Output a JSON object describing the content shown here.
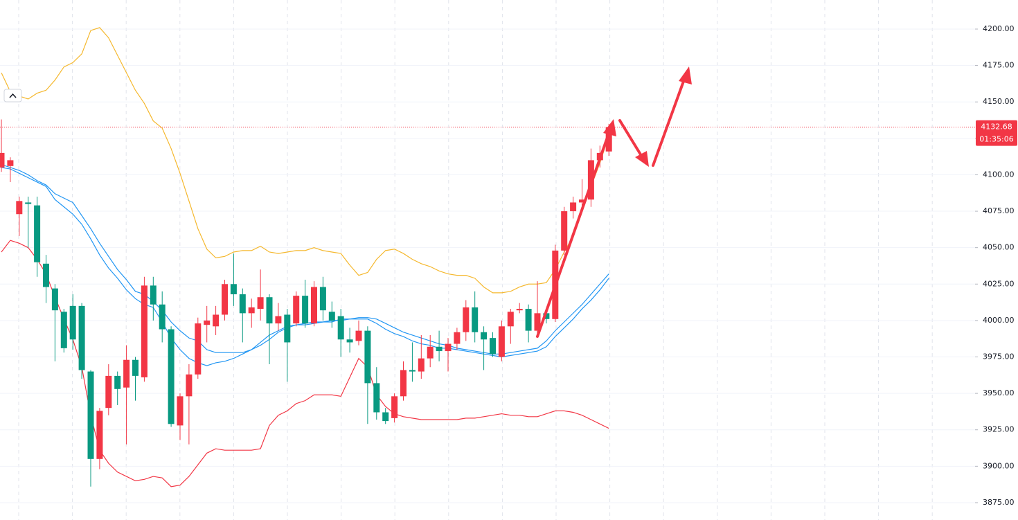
{
  "chart_data": {
    "type": "candlestick",
    "up_color": "#f23645",
    "down_color": "#089981",
    "ylim": [
      3863.1,
      4219.95
    ],
    "yticks": [
      {
        "value": 4200,
        "label": "4200.00"
      },
      {
        "value": 4175,
        "label": "4175.00"
      },
      {
        "value": 4150,
        "label": "4150.00"
      },
      {
        "value": 4125,
        "label": "4125.00"
      },
      {
        "value": 4100,
        "label": "4100.00"
      },
      {
        "value": 4075,
        "label": "4075.00"
      },
      {
        "value": 4050,
        "label": "4050.00"
      },
      {
        "value": 4025,
        "label": "4025.00"
      },
      {
        "value": 4000,
        "label": "4000.00"
      },
      {
        "value": 3975,
        "label": "3975.00"
      },
      {
        "value": 3950,
        "label": "3950.00"
      },
      {
        "value": 3925,
        "label": "3925.00"
      },
      {
        "value": 3900,
        "label": "3900.00"
      },
      {
        "value": 3875,
        "label": "3875.00"
      }
    ],
    "grid": true,
    "candles": {
      "open": [
        4105,
        4106,
        4073,
        4081,
        4079,
        4039,
        4022,
        4006,
        4010,
        4010,
        3965,
        3905,
        3940,
        3962,
        3954,
        3973,
        3961,
        4024,
        4011,
        3994,
        3928,
        3948,
        3963,
        3997,
        3996,
        4004,
        4025,
        4018,
        4005,
        4008,
        4016,
        3998,
        4004,
        3998,
        4017,
        3998,
        4023,
        4006,
        4003,
        3987,
        3986,
        3993,
        3957,
        3937,
        3933,
        3948,
        3966,
        3965,
        3974,
        3982,
        3979,
        3984,
        3992,
        4009,
        3992,
        3988,
        3975,
        3996,
        4007,
        4008,
        3993,
        4005,
        4001,
        4048,
        4075,
        4081,
        4083,
        4110,
        4116
      ],
      "high": [
        4138,
        4112,
        4085,
        4085,
        4085,
        4045,
        4025,
        4008,
        4018,
        4012,
        3966,
        3940,
        3970,
        3965,
        3983,
        3975,
        4030,
        4030,
        4020,
        3996,
        3950,
        3970,
        4002,
        4010,
        4010,
        4028,
        4046,
        4022,
        4015,
        4035,
        4018,
        4012,
        4008,
        4020,
        4028,
        4027,
        4030,
        4013,
        4008,
        3995,
        4000,
        3996,
        3968,
        3940,
        3950,
        3972,
        3985,
        3990,
        3990,
        3993,
        3988,
        3995,
        4014,
        4020,
        3996,
        3992,
        4000,
        4008,
        4012,
        4011,
        4027,
        4008,
        4052,
        4078,
        4085,
        4097,
        4118,
        4120,
        4135
      ],
      "low": [
        4102,
        4095,
        4058,
        4050,
        4030,
        4012,
        3972,
        3978,
        3980,
        3960,
        3886,
        3898,
        3935,
        3942,
        3915,
        3945,
        3958,
        4000,
        3985,
        3927,
        3918,
        3915,
        3960,
        3985,
        3990,
        4000,
        4010,
        3985,
        3995,
        4000,
        3970,
        3993,
        3958,
        3996,
        3995,
        3996,
        4000,
        3995,
        3975,
        3978,
        3983,
        3929,
        3932,
        3929,
        3930,
        3945,
        3958,
        3960,
        3968,
        3972,
        3965,
        3980,
        3986,
        3985,
        3966,
        3975,
        3972,
        3984,
        4005,
        3985,
        3988,
        3998,
        3999,
        4045,
        4070,
        4077,
        4078,
        4105,
        4113
      ],
      "close": [
        4115,
        4110,
        4082,
        4080,
        4040,
        4023,
        4007,
        3981,
        3987,
        3966,
        3905,
        3938,
        3962,
        3953,
        3973,
        3962,
        4024,
        4011,
        3994,
        3929,
        3948,
        3963,
        3998,
        4000,
        4004,
        4025,
        4018,
        4005,
        4009,
        4016,
        3998,
        4003,
        3985,
        4017,
        3998,
        4023,
        4007,
        4000,
        3987,
        3985,
        3993,
        3957,
        3937,
        3931,
        3948,
        3966,
        3965,
        3974,
        3982,
        3979,
        3984,
        3992,
        4009,
        3992,
        3987,
        3977,
        3996,
        4006,
        4008,
        3993,
        4005,
        4001,
        4048,
        4075,
        4081,
        4083,
        4110,
        4115,
        4132.68
      ]
    },
    "lines": [
      {
        "color": "#f5b82e",
        "values": [
          4170,
          4157,
          4154,
          4152,
          4156,
          4158,
          4165,
          4174,
          4177,
          4183,
          4199,
          4201,
          4194,
          4182,
          4170,
          4158,
          4149,
          4137,
          4132,
          4118,
          4101,
          4082,
          4063,
          4049,
          4043,
          4044,
          4047,
          4048,
          4048,
          4051,
          4047,
          4046,
          4047,
          4048,
          4048,
          4050,
          4048,
          4047,
          4046,
          4038,
          4031,
          4033,
          4042,
          4048,
          4049,
          4046,
          4042,
          4039,
          4037,
          4034,
          4032,
          4031,
          4031,
          4029,
          4023,
          4019,
          4019,
          4020,
          4023,
          4025,
          4025,
          4026,
          4035,
          4047,
          4058,
          4077,
          4092,
          4108,
          4127
        ]
      },
      {
        "color": "#f23645",
        "values": [
          4047,
          4055,
          4053,
          4050,
          4042,
          4032,
          4016,
          4001,
          3987,
          3968,
          3935,
          3911,
          3902,
          3896,
          3893,
          3890,
          3891,
          3893,
          3892,
          3886,
          3887,
          3893,
          3901,
          3909,
          3912,
          3911,
          3911,
          3911,
          3911,
          3912,
          3928,
          3935,
          3938,
          3943,
          3945,
          3949,
          3949,
          3949,
          3948,
          3961,
          3974,
          3968,
          3949,
          3941,
          3936,
          3934,
          3933,
          3932,
          3932,
          3932,
          3932,
          3932,
          3933,
          3933,
          3934,
          3935,
          3936,
          3935,
          3935,
          3934,
          3934,
          3936,
          3938,
          3938,
          3937,
          3935,
          3932,
          3929,
          3926
        ]
      },
      {
        "color": "#2196f3",
        "values": [
          4107,
          4105,
          4103,
          4100,
          4096,
          4093,
          4087,
          4084,
          4081,
          4072,
          4063,
          4053,
          4044,
          4035,
          4028,
          4020,
          4018,
          4013,
          4007,
          3999,
          3993,
          3988,
          3986,
          3980,
          3978,
          3978,
          3978,
          3978,
          3980,
          3983,
          3987,
          3992,
          3995,
          3997,
          3998,
          3999,
          3999,
          4000,
          4000,
          4001,
          4002,
          4002,
          4001,
          3998,
          3995,
          3992,
          3990,
          3988,
          3986,
          3984,
          3983,
          3981,
          3980,
          3979,
          3978,
          3977,
          3977,
          3978,
          3979,
          3980,
          3981,
          3986,
          3993,
          3999,
          4005,
          4011,
          4018,
          4025,
          4032
        ]
      },
      {
        "color": "#2196f3",
        "values": [
          4105,
          4104,
          4101,
          4098,
          4095,
          4092,
          4083,
          4078,
          4073,
          4066,
          4056,
          4045,
          4036,
          4029,
          4021,
          4015,
          4011,
          4009,
          3999,
          3988,
          3980,
          3974,
          3971,
          3969,
          3971,
          3972,
          3974,
          3977,
          3980,
          3985,
          3990,
          3993,
          3996,
          3997,
          3997,
          3998,
          3999,
          3999,
          4001,
          4001,
          4001,
          4001,
          3998,
          3994,
          3991,
          3989,
          3986,
          3984,
          3983,
          3981,
          3981,
          3980,
          3979,
          3978,
          3977,
          3976,
          3975,
          3976,
          3977,
          3978,
          3979,
          3982,
          3989,
          3995,
          4001,
          4008,
          4014,
          4021,
          4029
        ]
      }
    ],
    "price_tag": {
      "price": 4132.68,
      "countdown": "01:35:06"
    }
  }
}
